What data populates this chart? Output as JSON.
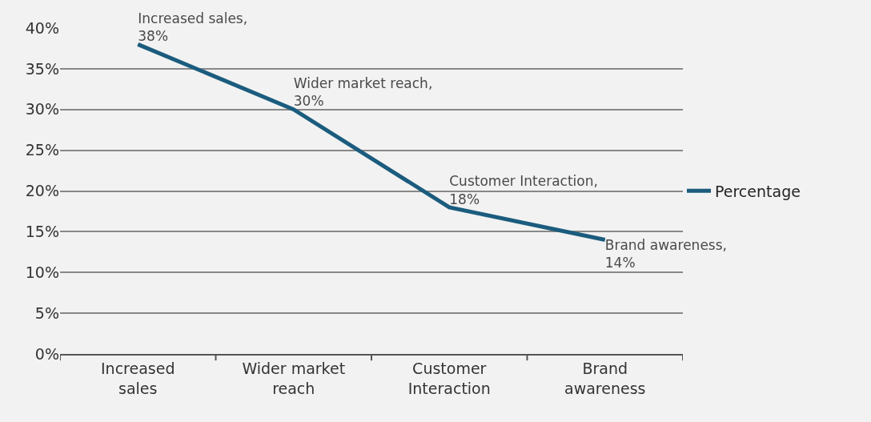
{
  "chart_data": {
    "type": "line",
    "categories": [
      "Increased sales",
      "Wider market reach",
      "Customer Interaction",
      "Brand awareness"
    ],
    "series": [
      {
        "name": "Percentage",
        "color": "#1b5c7e",
        "values": [
          38,
          30,
          18,
          14
        ],
        "value_labels": [
          "Increased sales, 38%",
          "Wider market reach, 30%",
          "Customer Interaction, 18%",
          "Brand awareness, 14%"
        ]
      }
    ],
    "ylim": [
      0,
      40
    ],
    "yticks": [
      {
        "value": 0,
        "label": "0%"
      },
      {
        "value": 5,
        "label": "5%"
      },
      {
        "value": 10,
        "label": "10%"
      },
      {
        "value": 15,
        "label": "15%"
      },
      {
        "value": 20,
        "label": "20%"
      },
      {
        "value": 25,
        "label": "25%"
      },
      {
        "value": 30,
        "label": "30%"
      },
      {
        "value": 35,
        "label": "35%"
      },
      {
        "value": 40,
        "label": "40%"
      }
    ],
    "grid": "y",
    "legend": "right",
    "marker": "none",
    "line_style": "solid"
  }
}
